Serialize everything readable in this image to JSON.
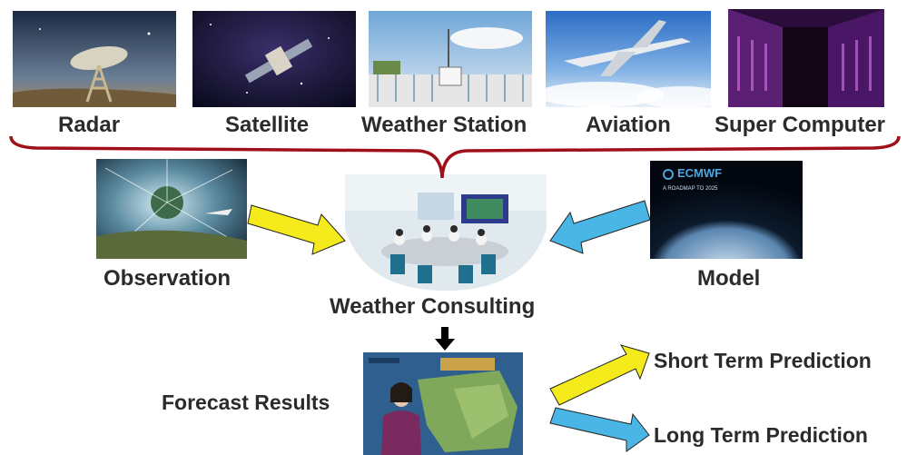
{
  "sources": [
    {
      "label": "Radar"
    },
    {
      "label": "Satellite"
    },
    {
      "label": "Weather Station"
    },
    {
      "label": "Aviation"
    },
    {
      "label": "Super Computer"
    }
  ],
  "observation": {
    "label": "Observation"
  },
  "model": {
    "label": "Model",
    "logo_text": "ECMWF",
    "caption": "A ROADMAP TO 2025"
  },
  "center": {
    "label": "Weather Consulting"
  },
  "forecast": {
    "label": "Forecast Results"
  },
  "outputs": {
    "short": "Short Term Prediction",
    "long": "Long Term Prediction"
  },
  "colors": {
    "brace": "#a0101a",
    "yellow_arrow": "#f4ea1c",
    "blue_arrow": "#4ab6e6",
    "black_arrow": "#000000"
  }
}
